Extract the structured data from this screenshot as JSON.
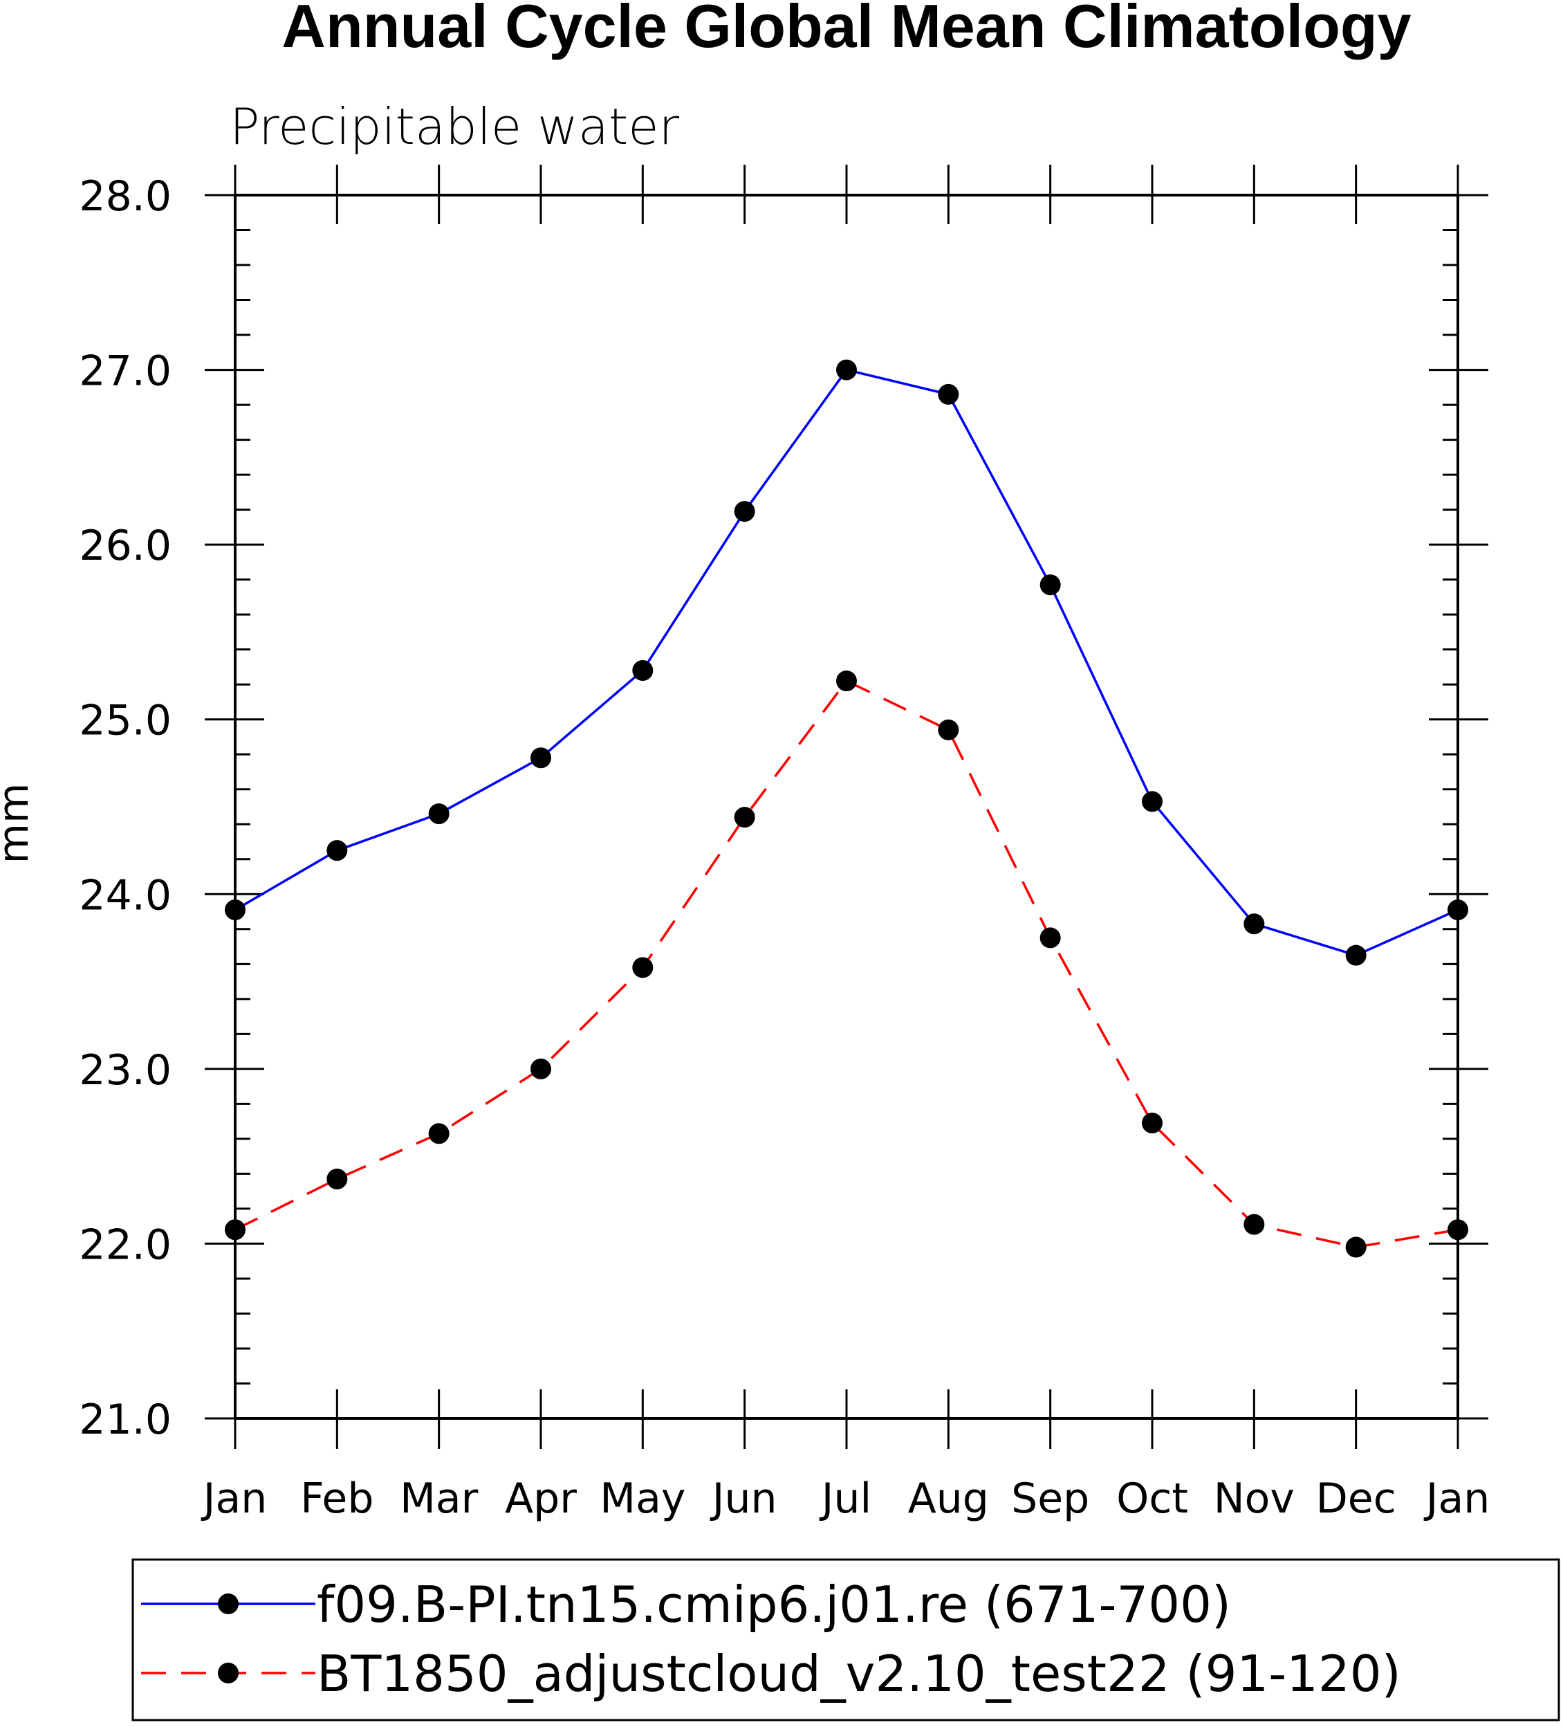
{
  "chart_data": {
    "type": "line",
    "title": "Annual Cycle Global Mean Climatology",
    "subtitle": "Precipitable water",
    "xlabel": "",
    "ylabel": "mm",
    "categories": [
      "Jan",
      "Feb",
      "Mar",
      "Apr",
      "May",
      "Jun",
      "Jul",
      "Aug",
      "Sep",
      "Oct",
      "Nov",
      "Dec",
      "Jan"
    ],
    "ylim": [
      21.0,
      28.0
    ],
    "yticks": [
      "21.0",
      "22.0",
      "23.0",
      "24.0",
      "25.0",
      "26.0",
      "27.0",
      "28.0"
    ],
    "grid": false,
    "legend_position": "bottom",
    "series": [
      {
        "name": "f09.B-PI.tn15.cmip6.j01.re (671-700)",
        "color": "#0000ff",
        "dash": "solid",
        "marker": "circle",
        "values": [
          23.91,
          24.25,
          24.46,
          24.78,
          25.28,
          26.19,
          27.0,
          26.86,
          25.77,
          24.53,
          23.83,
          23.65,
          23.91
        ]
      },
      {
        "name": "BT1850_adjustcloud_v2.10_test22 (91-120)",
        "color": "#ff0000",
        "dash": "dashed",
        "marker": "circle",
        "values": [
          22.08,
          22.37,
          22.63,
          23.0,
          23.58,
          24.44,
          25.22,
          24.94,
          23.75,
          22.69,
          22.11,
          21.98,
          22.08
        ]
      }
    ]
  }
}
